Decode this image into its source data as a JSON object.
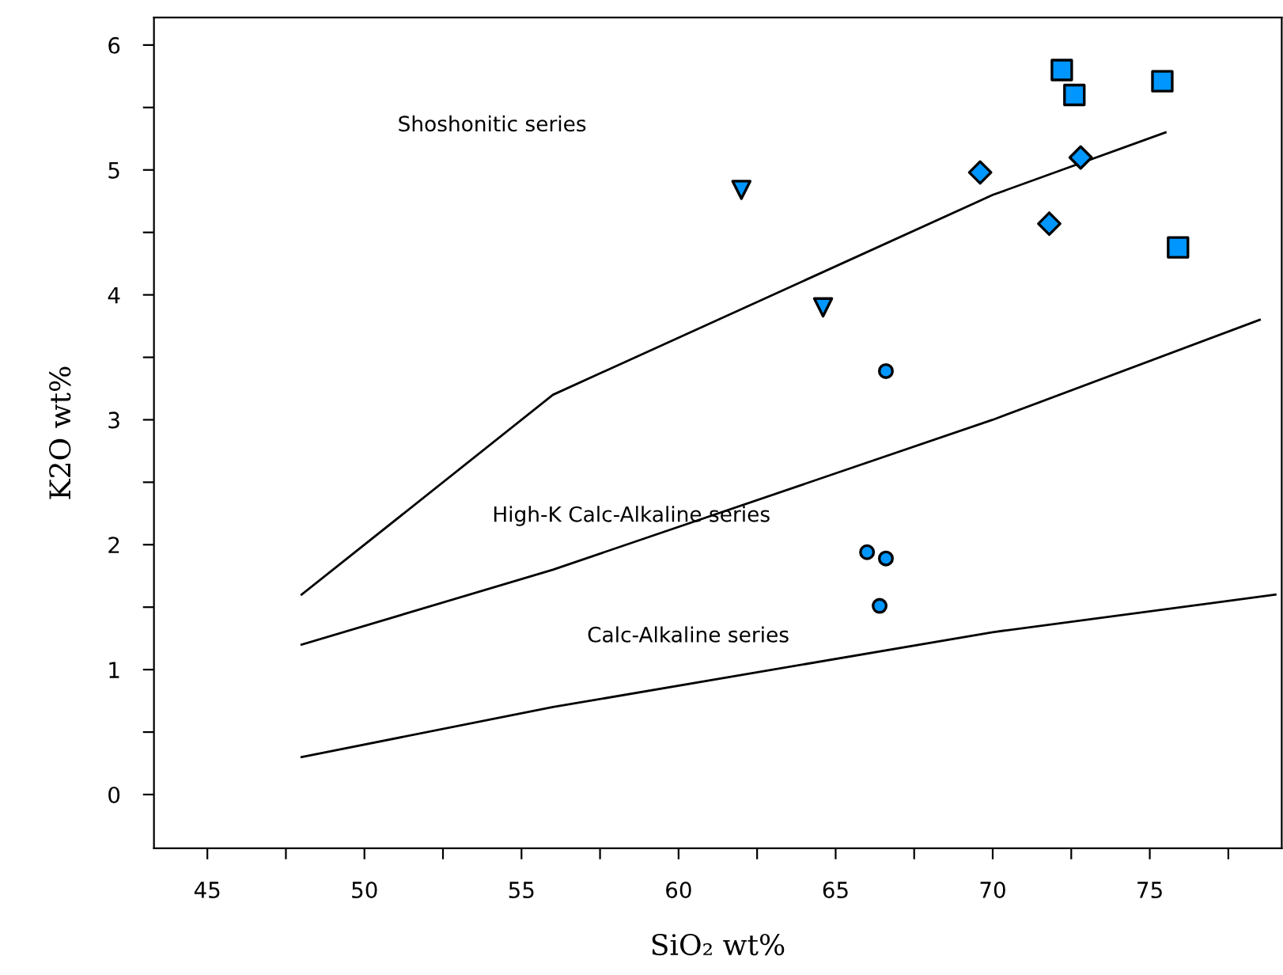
{
  "chart_data": {
    "type": "scatter",
    "xlabel": "SiO₂ wt%",
    "ylabel": "K2O wt%",
    "xlim": [
      43.3,
      79.2
    ],
    "ylim": [
      -0.43,
      6.22
    ],
    "xticks": [
      45,
      {
        "value": 47.5,
        "label": null
      },
      50,
      {
        "value": 52.5,
        "label": null
      },
      55,
      {
        "value": 57.5,
        "label": null
      },
      60,
      {
        "value": 62.5,
        "label": null
      },
      65,
      {
        "value": 67.5,
        "label": null
      },
      70,
      {
        "value": 72.5,
        "label": null
      },
      75,
      {
        "value": 77.5,
        "label": null
      }
    ],
    "yticks": [
      0,
      {
        "value": 0.5,
        "label": null
      },
      1,
      {
        "value": 1.5,
        "label": null
      },
      2,
      {
        "value": 2.5,
        "label": null
      },
      3,
      {
        "value": 3.5,
        "label": null
      },
      4,
      {
        "value": 4.5,
        "label": null
      },
      5,
      {
        "value": 5.5,
        "label": null
      },
      6
    ],
    "grid": false,
    "legend": false,
    "series": [
      {
        "type": "line",
        "color": "#000000",
        "marker": "none",
        "x": [
          48,
          56,
          70,
          75.5
        ],
        "values": [
          1.6,
          3.2,
          4.8,
          5.3
        ]
      },
      {
        "type": "line",
        "color": "#000000",
        "marker": "none",
        "x": [
          48,
          56,
          70,
          78.5
        ],
        "values": [
          1.2,
          1.8,
          3.0,
          3.8
        ]
      },
      {
        "type": "line",
        "color": "#000000",
        "marker": "none",
        "x": [
          48,
          56,
          70,
          79
        ],
        "values": [
          0.3,
          0.7,
          1.3,
          1.6
        ]
      },
      {
        "color": "#0096ff",
        "marker": "square",
        "x": [
          72.2,
          72.6,
          75.4,
          75.9
        ],
        "values": [
          5.8,
          5.6,
          5.71,
          4.38
        ]
      },
      {
        "color": "#0096ff",
        "marker": "diamond",
        "x": [
          69.6,
          72.8,
          71.8
        ],
        "values": [
          4.98,
          5.1,
          4.57
        ]
      },
      {
        "color": "#0096ff",
        "marker": "triangle",
        "x": [
          62.0,
          64.6
        ],
        "values": [
          4.84,
          3.9
        ]
      },
      {
        "color": "#0096ff",
        "marker": "circle",
        "x": [
          66.6,
          66.0,
          66.6,
          66.4
        ],
        "values": [
          3.39,
          1.94,
          1.89,
          1.51
        ]
      }
    ],
    "annotations": [
      "Shoshonitic series",
      "High-K Calc-Alkaline series",
      "Calc-Alkaline series"
    ]
  }
}
